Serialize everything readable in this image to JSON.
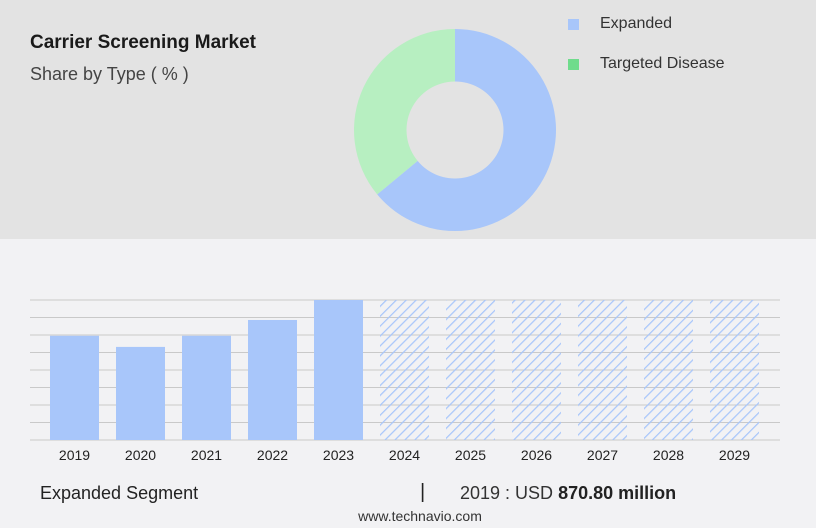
{
  "header": {
    "title": "Carrier Screening Market",
    "subtitle": "Share by Type ( % )"
  },
  "legend": [
    {
      "label": "Expanded",
      "color": "#a8c6fa"
    },
    {
      "label": "Targeted Disease",
      "color": "#6fdc8c"
    }
  ],
  "chart_data": [
    {
      "type": "pie",
      "title": "Share by Type ( % )",
      "categories": [
        "Expanded",
        "Targeted Disease"
      ],
      "values": [
        64,
        36
      ],
      "colors": [
        "#a8c6fa",
        "#b7efc1"
      ],
      "hole": 0.48
    },
    {
      "type": "bar",
      "categories": [
        "2019",
        "2020",
        "2021",
        "2022",
        "2023",
        "2024",
        "2025",
        "2026",
        "2027",
        "2028",
        "2029"
      ],
      "series": [
        {
          "name": "Expanded Segment",
          "values": [
            870.8,
            778,
            870.8,
            1003,
            1170,
            null,
            null,
            null,
            null,
            null,
            null
          ]
        }
      ],
      "forecast_from": "2024",
      "ylim": [
        0,
        1170
      ],
      "grid": true,
      "bar_color": "#a8c6fa"
    }
  ],
  "footer": {
    "segment_label": "Expanded Segment",
    "separator": "|",
    "year_text": "2019 : USD",
    "value_text": "870.80 million",
    "website": "www.technavio.com"
  }
}
